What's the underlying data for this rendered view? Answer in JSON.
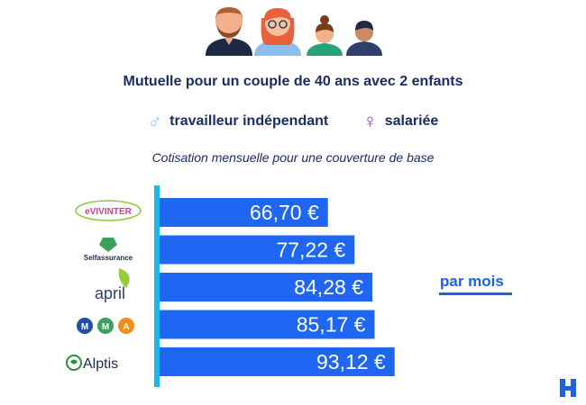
{
  "header": {
    "title": "Mutuelle pour un couple de 40 ans avec 2 enfants",
    "profile_male": "travailleur indépendant",
    "profile_female": "salariée",
    "subtitle": "Cotisation mensuelle pour une couverture de base"
  },
  "side_label": "par mois",
  "colors": {
    "bar": "#1f66f2",
    "axis": "#19b8e8",
    "text": "#1b2c63",
    "accent": "#1b63e6"
  },
  "chart_data": {
    "type": "bar",
    "orientation": "horizontal",
    "categories": [
      "Vivinter",
      "Selfassurance",
      "april",
      "MMA",
      "Alptis"
    ],
    "values": [
      66.7,
      77.22,
      84.28,
      85.17,
      93.12
    ],
    "value_labels": [
      "66,70 €",
      "77,22 €",
      "84,28 €",
      "85,17 €",
      "93,12 €"
    ],
    "logo_texts": [
      "eVIVINTER",
      "Selfassurance",
      "april",
      "",
      "Alptis"
    ],
    "unit": "€",
    "xlim": [
      0,
      100
    ],
    "title": "",
    "xlabel": "",
    "ylabel": ""
  }
}
